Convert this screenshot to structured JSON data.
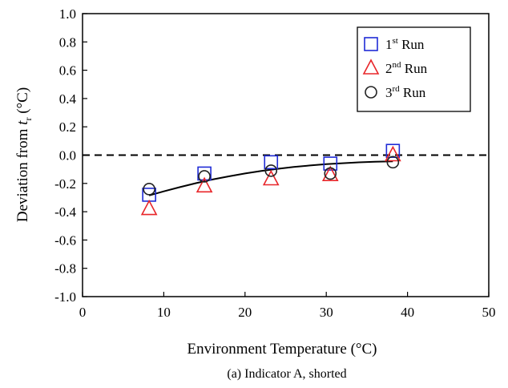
{
  "chart_data": {
    "type": "scatter",
    "caption": "(a) Indicator A, shorted",
    "xlabel": "Environment Temperature (°C)",
    "ylabel": {
      "prefix": "Deviation from ",
      "symbol": "t",
      "subscript": "r",
      "suffix": " (°C)"
    },
    "xlim": [
      0,
      50
    ],
    "ylim": [
      -1.0,
      1.0
    ],
    "x_ticks": [
      "0",
      "10",
      "20",
      "30",
      "40",
      "50"
    ],
    "y_ticks": [
      "1.0",
      "0.8",
      "0.6",
      "0.4",
      "0.2",
      "0.0",
      "-0.2",
      "-0.4",
      "-0.6",
      "-0.8",
      "-1.0"
    ],
    "x_tick_values": [
      0,
      10,
      20,
      30,
      40,
      50
    ],
    "y_tick_values": [
      1.0,
      0.8,
      0.6,
      0.4,
      0.2,
      0.0,
      -0.2,
      -0.4,
      -0.6,
      -0.8,
      -1.0
    ],
    "grid": false,
    "legend_position": "top-right",
    "reference_line": {
      "y": 0.0,
      "style": "dashed"
    },
    "series": [
      {
        "name_base": "1",
        "name_sup": "st",
        "name_tail": " Run",
        "marker": "square",
        "color": "#1f2bd6",
        "x": [
          8.2,
          15.0,
          23.2,
          30.5,
          38.2
        ],
        "y": [
          -0.28,
          -0.13,
          -0.05,
          -0.06,
          0.03
        ]
      },
      {
        "name_base": "2",
        "name_sup": "nd",
        "name_tail": " Run",
        "marker": "triangle",
        "color": "#e8262a",
        "x": [
          8.2,
          15.0,
          23.2,
          30.5,
          38.2
        ],
        "y": [
          -0.38,
          -0.22,
          -0.17,
          -0.14,
          0.0
        ]
      },
      {
        "name_base": "3",
        "name_sup": "rd",
        "name_tail": " Run",
        "marker": "circle",
        "color": "#222222",
        "x": [
          8.2,
          15.0,
          23.2,
          30.5,
          38.2
        ],
        "y": [
          -0.24,
          -0.15,
          -0.11,
          -0.13,
          -0.05
        ]
      }
    ],
    "fit_curve": {
      "color": "#000000",
      "x": [
        8.2,
        10,
        12,
        14,
        16,
        18,
        20,
        22,
        24,
        26,
        28,
        30,
        32,
        34,
        36,
        38.2
      ],
      "y": [
        -0.285,
        -0.256,
        -0.226,
        -0.198,
        -0.172,
        -0.15,
        -0.13,
        -0.112,
        -0.097,
        -0.084,
        -0.073,
        -0.064,
        -0.057,
        -0.051,
        -0.047,
        -0.044
      ]
    }
  }
}
